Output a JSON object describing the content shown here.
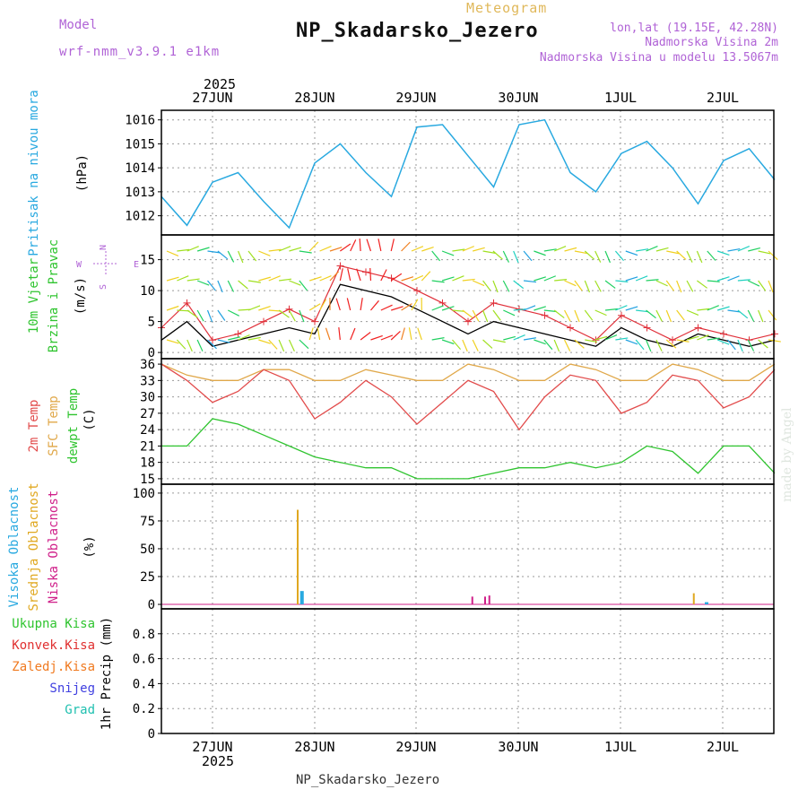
{
  "header": {
    "model_label": "Model",
    "model_value": "wrf-nmm_v3.9.1 e1km",
    "meteogram_label": "Meteogram",
    "station_title": "NP_Skadarsko_Jezero",
    "lonlat": "lon,lat (19.15E, 42.28N)",
    "elevation": "Nadmorska Visina 2m",
    "model_elevation": "Nadmorska Visina u modelu 13.5067m",
    "footer_station": "NP_Skadarsko_Jezero",
    "credit": "made by Angel"
  },
  "colors": {
    "pressure": "#29a9e0",
    "wind_speed": "#000000",
    "wind_gust": "#e0303a",
    "temp_2m": "#e24b4b",
    "temp_sfc": "#e0a84a",
    "temp_dewpt": "#2fc42f",
    "cloud_high": "#29a9e0",
    "cloud_mid": "#e0a820",
    "cloud_low": "#d0208a",
    "precip_total": "#2fc42f",
    "precip_conv": "#e03030",
    "precip_frozen": "#f07a20",
    "precip_snow": "#4040e0",
    "precip_graupel": "#20c0b0",
    "compass_label": "#b063d6"
  },
  "chart_data": [
    {
      "type": "line",
      "panel": "pressure",
      "ylabel": "Pritisak na nivou mora",
      "unit": "(hPa)",
      "x": [
        "26JUN 12",
        "26JUN 18",
        "27JUN 00",
        "27JUN 06",
        "27JUN 12",
        "27JUN 18",
        "28JUN 00",
        "28JUN 06",
        "28JUN 12",
        "28JUN 18",
        "29JUN 00",
        "29JUN 06",
        "29JUN 12",
        "29JUN 18",
        "30JUN 00",
        "30JUN 06",
        "30JUN 12",
        "30JUN 18",
        "1JUL 00",
        "1JUL 06",
        "1JUL 12",
        "1JUL 18",
        "2JUL 00",
        "2JUL 06",
        "2JUL 12"
      ],
      "series": [
        {
          "values": [
            1012.8,
            1011.6,
            1013.4,
            1013.8,
            1012.6,
            1011.5,
            1014.2,
            1015.0,
            1013.8,
            1012.8,
            1015.7,
            1015.8,
            1014.5,
            1013.2,
            1015.8,
            1016.0,
            1013.8,
            1013.0,
            1014.6,
            1015.1,
            1014.0,
            1012.5,
            1014.3,
            1014.8,
            1013.5
          ]
        }
      ],
      "ylim": [
        1011.2,
        1016.4
      ],
      "yticks": [
        1012,
        1013,
        1014,
        1015,
        1016
      ]
    },
    {
      "type": "line",
      "panel": "wind",
      "ylabel": "10m Vjetar Brzina i Pravac",
      "unit": "(m/s)",
      "compass": [
        "N",
        "E",
        "W",
        "S"
      ],
      "x": [
        "26JUN 12",
        "26JUN 18",
        "27JUN 00",
        "27JUN 06",
        "27JUN 12",
        "27JUN 18",
        "28JUN 00",
        "28JUN 06",
        "28JUN 12",
        "28JUN 18",
        "29JUN 00",
        "29JUN 06",
        "29JUN 12",
        "29JUN 18",
        "30JUN 00",
        "30JUN 06",
        "30JUN 12",
        "30JUN 18",
        "1JUL 00",
        "1JUL 06",
        "1JUL 12",
        "1JUL 18",
        "2JUL 00",
        "2JUL 06",
        "2JUL 12"
      ],
      "series": [
        {
          "values": [
            2,
            5,
            1,
            2,
            3,
            4,
            3,
            11,
            10,
            9,
            7,
            5,
            3,
            5,
            4,
            3,
            2,
            1,
            4,
            2,
            1,
            3,
            2,
            1,
            2
          ]
        },
        {
          "values": [
            4,
            8,
            2,
            3,
            5,
            7,
            5,
            14,
            13,
            12,
            10,
            8,
            5,
            8,
            7,
            6,
            4,
            2,
            6,
            4,
            2,
            4,
            3,
            2,
            3
          ]
        }
      ],
      "ylim": [
        -1,
        19
      ],
      "yticks": [
        0,
        5,
        10,
        15
      ]
    },
    {
      "type": "line",
      "panel": "temperature",
      "ylabel": [
        "2m Temp",
        "SFC Temp",
        "dewpt Temp"
      ],
      "unit": "(C)",
      "x": [
        "26JUN 12",
        "26JUN 18",
        "27JUN 00",
        "27JUN 06",
        "27JUN 12",
        "27JUN 18",
        "28JUN 00",
        "28JUN 06",
        "28JUN 12",
        "28JUN 18",
        "29JUN 00",
        "29JUN 06",
        "29JUN 12",
        "29JUN 18",
        "30JUN 00",
        "30JUN 06",
        "30JUN 12",
        "30JUN 18",
        "1JUL 00",
        "1JUL 06",
        "1JUL 12",
        "1JUL 18",
        "2JUL 00",
        "2JUL 06",
        "2JUL 12"
      ],
      "series": [
        {
          "values": [
            36,
            33,
            29,
            31,
            35,
            33,
            26,
            29,
            33,
            30,
            25,
            29,
            33,
            31,
            24,
            30,
            34,
            33,
            27,
            29,
            34,
            33,
            28,
            30,
            35
          ]
        },
        {
          "values": [
            36,
            34,
            33,
            33,
            35,
            35,
            33,
            33,
            35,
            34,
            33,
            33,
            36,
            35,
            33,
            33,
            36,
            35,
            33,
            33,
            36,
            35,
            33,
            33,
            36
          ]
        },
        {
          "values": [
            21,
            21,
            26,
            25,
            23,
            21,
            19,
            18,
            17,
            17,
            15,
            15,
            15,
            16,
            17,
            17,
            18,
            17,
            18,
            21,
            20,
            16,
            21,
            21,
            16
          ]
        }
      ],
      "ylim": [
        14,
        37
      ],
      "yticks": [
        15,
        18,
        21,
        24,
        27,
        30,
        33,
        36
      ]
    },
    {
      "type": "bar",
      "panel": "cloud",
      "ylabel": [
        "Visoka Oblacnost",
        "Srednja Oblacnost",
        "Niska Oblacnost"
      ],
      "unit": "(%)",
      "bars": [
        {
          "x": "27JUN 20",
          "series": "mid",
          "value": 85
        },
        {
          "x": "27JUN 21",
          "series": "high",
          "value": 12
        },
        {
          "x": "29JUN 13",
          "series": "low",
          "value": 7
        },
        {
          "x": "29JUN 16",
          "series": "low",
          "value": 7
        },
        {
          "x": "29JUN 17",
          "series": "low",
          "value": 8
        },
        {
          "x": "1JUL 17",
          "series": "mid",
          "value": 10
        },
        {
          "x": "1JUL 20",
          "series": "high",
          "value": 2
        }
      ],
      "ylim": [
        -4,
        108
      ],
      "yticks": [
        0,
        25,
        50,
        75,
        100
      ]
    },
    {
      "type": "line",
      "panel": "precip",
      "legend": [
        "Ukupna Kisa",
        "Konvek.Kisa",
        "Zaledj.Kisa",
        "Snijeg",
        "Grad"
      ],
      "ylabel": "1hr Precip (mm)",
      "values": [
        0
      ],
      "ylim": [
        0,
        1
      ],
      "yticks": [
        0,
        0.2,
        0.4,
        0.6,
        0.8
      ]
    }
  ],
  "axis": {
    "top_year": "2025",
    "bottom_year": "2025",
    "day_labels": [
      "27JUN",
      "28JUN",
      "29JUN",
      "30JUN",
      "1JUL",
      "2JUL"
    ]
  }
}
